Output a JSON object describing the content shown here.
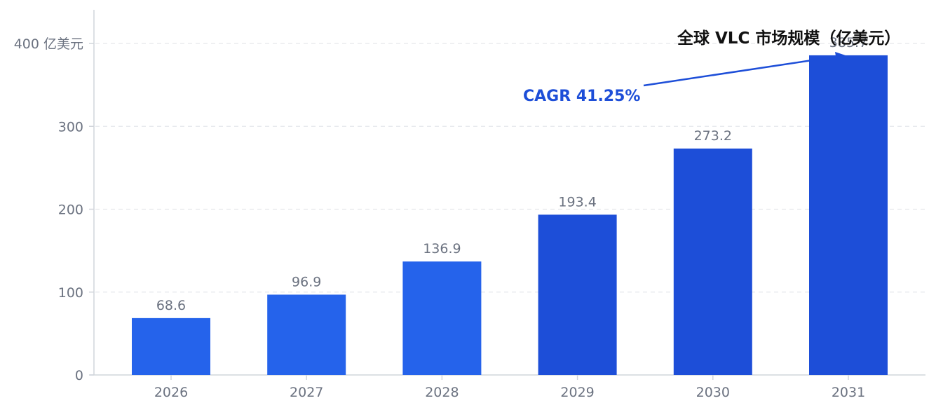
{
  "chart_data": {
    "type": "bar",
    "title": "全球 VLC 市场规模（亿美元）",
    "unit_label": "亿美元",
    "categories": [
      "2026",
      "2027",
      "2028",
      "2029",
      "2030",
      "2031"
    ],
    "values": [
      68.6,
      96.9,
      136.9,
      193.4,
      273.2,
      385.7
    ],
    "data_labels": [
      "68.6",
      "96.9",
      "136.9",
      "193.4",
      "273.2",
      "385.7"
    ],
    "ylim": [
      0,
      400
    ],
    "yticks": [
      0,
      100,
      200,
      300,
      400
    ],
    "ytick_labels": [
      "0",
      "100",
      "200",
      "300",
      "400 亿美元"
    ],
    "grid": true,
    "legend": "none",
    "annotation": "CAGR 41.25%",
    "colors": {
      "bar_light": "#2563eb",
      "bar_dark": "#1d4ed8",
      "annotation": "#1d4ed8",
      "grid": "#e5e7eb",
      "axis": "#d1d5db"
    }
  }
}
